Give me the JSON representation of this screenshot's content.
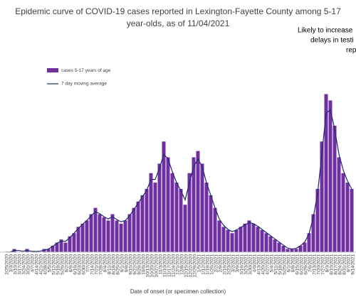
{
  "chart_data": {
    "type": "bar",
    "title": "Epidemic curve of COVID-19 cases reported in Lexington-Fayette County among 5-17 year-olds, as of 11/04/2021",
    "annotation": [
      "Likely to increase",
      "delays in testi",
      "rep"
    ],
    "x_label": "Date of onset (or specimen collection)",
    "categories": [
      "2/25/2020",
      "3/3/2020",
      "3/10/2020",
      "3/17/2020",
      "3/24/2020",
      "3/31/2020",
      "4/7/2020",
      "4/14/2020",
      "4/21/2020",
      "4/28/2020",
      "5/5/2020",
      "5/12/2020",
      "5/19/2020",
      "5/26/2020",
      "6/2/2020",
      "6/9/2020",
      "6/16/2020",
      "6/23/2020",
      "6/30/2020",
      "7/7/2020",
      "7/14/2020",
      "7/21/2020",
      "7/28/2020",
      "8/4/2020",
      "8/11/2020",
      "8/18/2020",
      "8/25/2020",
      "9/1/2020",
      "9/8/2020",
      "9/15/2020",
      "9/22/2020",
      "9/29/2020",
      "10/6/2020",
      "10/13/2020",
      "10/20/2020",
      "10/27/2020",
      "11/3/2020",
      "11/10/2020",
      "11/17/2020",
      "11/24/2020",
      "12/1/2020",
      "12/8/2020",
      "12/15/2020",
      "12/22/2020",
      "12/29/2020",
      "1/5/2021",
      "1/12/2021",
      "1/19/2021",
      "1/26/2021",
      "2/2/2021",
      "2/9/2021",
      "2/16/2021",
      "2/23/2021",
      "3/2/2021",
      "3/9/2021",
      "3/16/2021",
      "3/23/2021",
      "3/30/2021",
      "4/6/2021",
      "4/13/2021",
      "4/20/2021",
      "4/27/2021",
      "5/4/2021",
      "5/11/2021",
      "5/18/2021",
      "5/25/2021",
      "6/1/2021",
      "6/8/2021",
      "6/15/2021",
      "6/22/2021",
      "6/29/2021",
      "7/6/2021",
      "7/13/2021",
      "7/20/2021",
      "7/27/2021",
      "8/3/2021",
      "8/10/2021",
      "8/17/2021",
      "8/24/2021",
      "8/31/2021",
      "9/7/2021",
      "9/14/2021"
    ],
    "series": [
      {
        "name": "cases 5-17 years of age",
        "color": "#7030a0",
        "values": [
          0,
          0,
          1,
          0,
          0,
          1,
          0,
          0,
          0,
          1,
          1,
          2,
          3,
          4,
          3,
          5,
          6,
          8,
          9,
          10,
          12,
          14,
          12,
          11,
          10,
          12,
          10,
          9,
          10,
          12,
          14,
          16,
          18,
          20,
          25,
          22,
          28,
          35,
          30,
          25,
          22,
          20,
          15,
          25,
          30,
          32,
          28,
          22,
          18,
          14,
          10,
          8,
          7,
          6,
          7,
          8,
          9,
          10,
          9,
          8,
          7,
          6,
          5,
          4,
          3,
          2,
          1,
          1,
          1,
          2,
          3,
          6,
          12,
          20,
          35,
          50,
          48,
          40,
          30,
          25,
          22,
          20
        ]
      },
      {
        "name": "7 day moving average",
        "color": "#1f2a6b",
        "values": [
          0,
          0,
          0.5,
          0.5,
          0.3,
          0.5,
          0.3,
          0.2,
          0.3,
          0.6,
          1,
          1.8,
          2.8,
          3.5,
          3.4,
          4.6,
          6,
          7.5,
          8.8,
          10,
          11.5,
          12.8,
          12.2,
          11.2,
          10.5,
          11.2,
          10.3,
          9.6,
          10,
          11.5,
          13.5,
          15.5,
          17.5,
          19.5,
          23,
          23,
          26.5,
          31,
          29.5,
          25.5,
          22,
          19.5,
          16.5,
          22,
          27,
          29.5,
          27,
          22,
          18,
          14,
          10.5,
          8.5,
          7.2,
          6.5,
          7,
          7.8,
          8.6,
          9.4,
          9,
          8.2,
          7.2,
          6.2,
          5.2,
          4.2,
          3.2,
          2.2,
          1.3,
          1,
          1.2,
          2,
          3.2,
          5.8,
          11,
          18.5,
          31,
          44,
          45,
          39,
          31,
          26,
          22.5,
          20
        ]
      }
    ],
    "ylim": [
      0,
      60
    ],
    "legend": "upper-left"
  }
}
